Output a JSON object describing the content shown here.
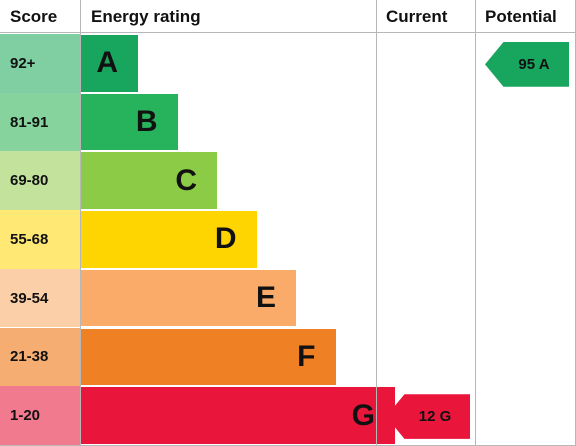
{
  "chart_data": {
    "type": "bar",
    "headers": {
      "score": "Score",
      "rating": "Energy rating",
      "current": "Current",
      "potential": "Potential"
    },
    "bands": [
      {
        "score": "92+",
        "letter": "A",
        "color": "#18a55d",
        "tint": "#7fcfa3"
      },
      {
        "score": "81-91",
        "letter": "B",
        "color": "#27b35b",
        "tint": "#86d39e"
      },
      {
        "score": "69-80",
        "letter": "C",
        "color": "#8bcb45",
        "tint": "#c3e39c"
      },
      {
        "score": "55-68",
        "letter": "D",
        "color": "#fed500",
        "tint": "#ffe873"
      },
      {
        "score": "39-54",
        "letter": "E",
        "color": "#faab6a",
        "tint": "#fbcfa8"
      },
      {
        "score": "21-38",
        "letter": "F",
        "color": "#ef8023",
        "tint": "#f5ad72"
      },
      {
        "score": "1-20",
        "letter": "G",
        "color": "#e9153b",
        "tint": "#f27a8e"
      }
    ],
    "current": {
      "label": "12 G",
      "band": "G",
      "color": "#e9153b"
    },
    "potential": {
      "label": "95 A",
      "band": "A",
      "color": "#18a55d"
    }
  }
}
